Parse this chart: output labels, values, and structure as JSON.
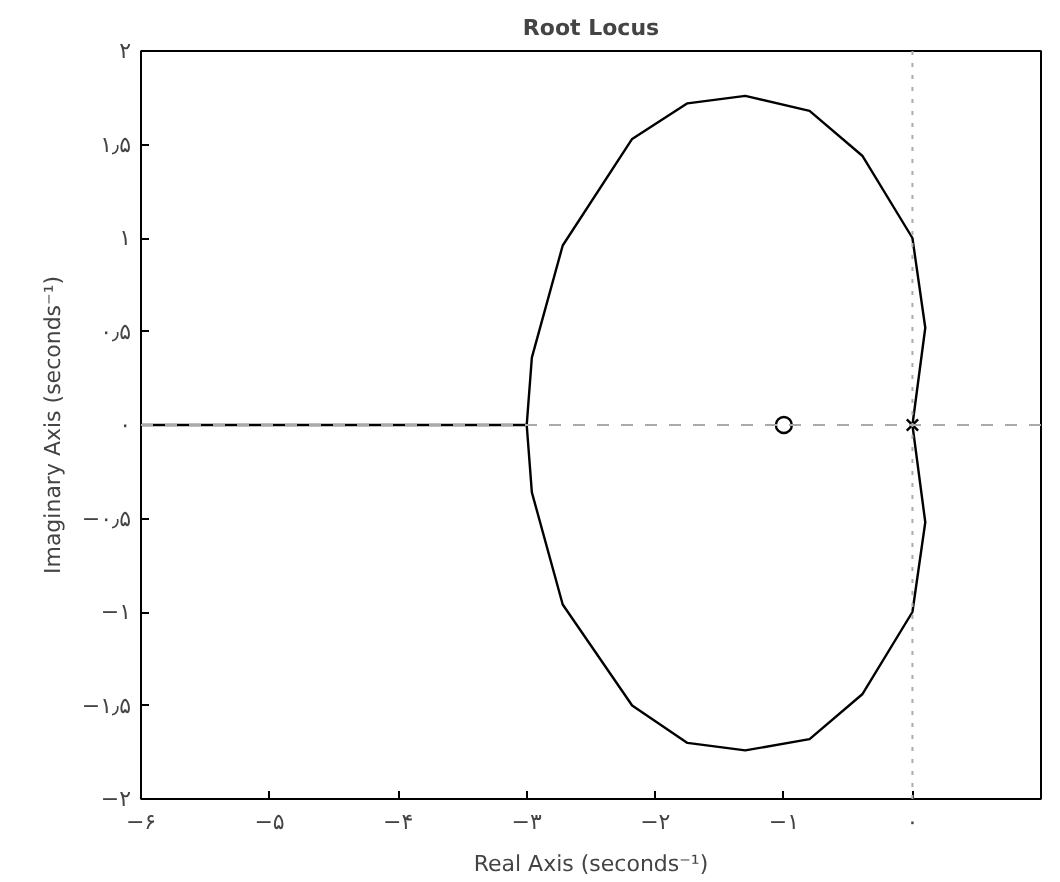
{
  "chart_data": {
    "type": "line",
    "title": "Root Locus",
    "xlabel": "Real Axis (seconds⁻¹)",
    "ylabel": "Imaginary Axis (seconds⁻¹)",
    "xlim": [
      -6,
      1
    ],
    "ylim": [
      -2,
      2
    ],
    "xticks": [
      {
        "value": -6,
        "label": "−۶"
      },
      {
        "value": -5,
        "label": "−۵"
      },
      {
        "value": -4,
        "label": "−۴"
      },
      {
        "value": -3,
        "label": "−۳"
      },
      {
        "value": -2,
        "label": "−۲"
      },
      {
        "value": -1,
        "label": "−۱"
      },
      {
        "value": 0,
        "label": "۰"
      }
    ],
    "yticks": [
      {
        "value": -2,
        "label": "−۲"
      },
      {
        "value": -1.5,
        "label": "−۱٫۵"
      },
      {
        "value": -1,
        "label": "−۱"
      },
      {
        "value": -0.5,
        "label": "−۰٫۵"
      },
      {
        "value": 0,
        "label": "۰"
      },
      {
        "value": 0.5,
        "label": "۰٫۵"
      },
      {
        "value": 1,
        "label": "۱"
      },
      {
        "value": 1.5,
        "label": "۱٫۵"
      },
      {
        "value": 2,
        "label": "۲"
      }
    ],
    "grid": false,
    "ref_lines": [
      {
        "axis": "x",
        "value": 0,
        "color": "#aaaaaa",
        "line_style": "dotted"
      },
      {
        "axis": "y",
        "value": 0,
        "color": "#aaaaaa",
        "line_style": "dashed"
      }
    ],
    "series": [
      {
        "color": "#000000",
        "x": [
          -3,
          -2.96,
          -2.72,
          -2.18,
          -1.75,
          -1.3,
          -0.8,
          -0.39,
          0,
          0.1,
          0
        ],
        "values": [
          0,
          0.36,
          0.96,
          1.53,
          1.72,
          1.76,
          1.68,
          1.44,
          1.0,
          0.52,
          0
        ],
        "marker": "none",
        "line_style": "solid"
      },
      {
        "type": "line",
        "color": "#000000",
        "x": [
          0,
          0.1,
          0,
          -0.39,
          -0.8,
          -1.3,
          -1.75,
          -2.18,
          -2.72,
          -2.96,
          -3,
          -6
        ],
        "values": [
          0,
          -0.52,
          -1.0,
          -1.44,
          -1.68,
          -1.74,
          -1.7,
          -1.5,
          -0.96,
          -0.36,
          0,
          0
        ],
        "marker": "none",
        "line_style": "solid"
      },
      {
        "type": "scatter",
        "color": "#000000",
        "x": [
          -1
        ],
        "values": [
          0
        ],
        "marker": "circle"
      },
      {
        "type": "scatter",
        "color": "#000000",
        "x": [
          0
        ],
        "values": [
          0
        ],
        "marker": "cross"
      }
    ]
  }
}
